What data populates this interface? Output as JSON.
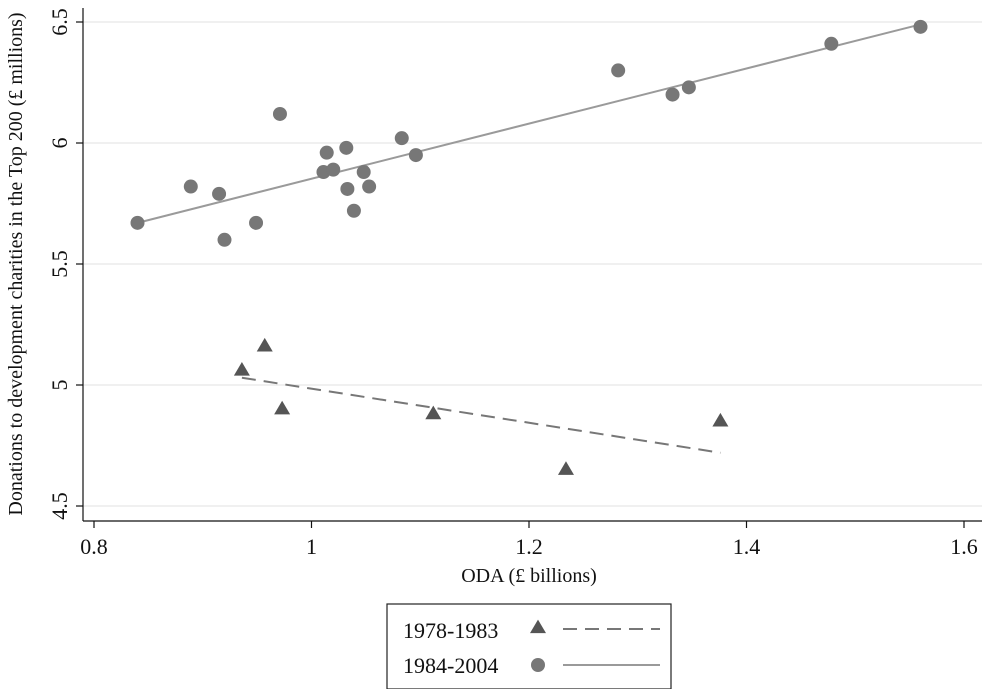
{
  "chart_data": {
    "type": "scatter",
    "xlabel": "ODA (£ billions)",
    "ylabel": "Donations to development charities in the Top 200 (£ millions)",
    "xlim": [
      0.8,
      1.6
    ],
    "ylim": [
      4.5,
      6.5
    ],
    "xticks": [
      "0.8",
      "1",
      "1.2",
      "1.4",
      "1.6"
    ],
    "xtick_values": [
      0.8,
      1.0,
      1.2,
      1.4,
      1.6
    ],
    "yticks": [
      "4.5",
      "5",
      "5.5",
      "6",
      "6.5"
    ],
    "ytick_values": [
      4.5,
      5.0,
      5.5,
      6.0,
      6.5
    ],
    "grid": true,
    "legend_position": "bottom",
    "series": [
      {
        "name": "1978-1983",
        "marker": "triangle",
        "color": "#555555",
        "line_style": "dashed",
        "points": [
          {
            "x": 0.936,
            "y": 5.06
          },
          {
            "x": 0.957,
            "y": 5.16
          },
          {
            "x": 0.973,
            "y": 4.9
          },
          {
            "x": 1.112,
            "y": 4.88
          },
          {
            "x": 1.234,
            "y": 4.65
          },
          {
            "x": 1.376,
            "y": 4.85
          }
        ],
        "fit": [
          {
            "x": 0.936,
            "y": 5.03
          },
          {
            "x": 1.376,
            "y": 4.72
          }
        ]
      },
      {
        "name": "1984-2004",
        "marker": "circle",
        "color": "#777777",
        "line_style": "solid",
        "points": [
          {
            "x": 0.84,
            "y": 5.67
          },
          {
            "x": 0.889,
            "y": 5.82
          },
          {
            "x": 0.915,
            "y": 5.79
          },
          {
            "x": 0.92,
            "y": 5.6
          },
          {
            "x": 0.949,
            "y": 5.67
          },
          {
            "x": 0.971,
            "y": 6.12
          },
          {
            "x": 1.011,
            "y": 5.88
          },
          {
            "x": 1.014,
            "y": 5.96
          },
          {
            "x": 1.02,
            "y": 5.89
          },
          {
            "x": 1.032,
            "y": 5.98
          },
          {
            "x": 1.033,
            "y": 5.81
          },
          {
            "x": 1.039,
            "y": 5.72
          },
          {
            "x": 1.048,
            "y": 5.88
          },
          {
            "x": 1.053,
            "y": 5.82
          },
          {
            "x": 1.083,
            "y": 6.02
          },
          {
            "x": 1.096,
            "y": 5.95
          },
          {
            "x": 1.282,
            "y": 6.3
          },
          {
            "x": 1.332,
            "y": 6.2
          },
          {
            "x": 1.347,
            "y": 6.23
          },
          {
            "x": 1.478,
            "y": 6.41
          },
          {
            "x": 1.56,
            "y": 6.48
          }
        ],
        "fit": [
          {
            "x": 0.84,
            "y": 5.67
          },
          {
            "x": 1.56,
            "y": 6.49
          }
        ]
      }
    ]
  }
}
